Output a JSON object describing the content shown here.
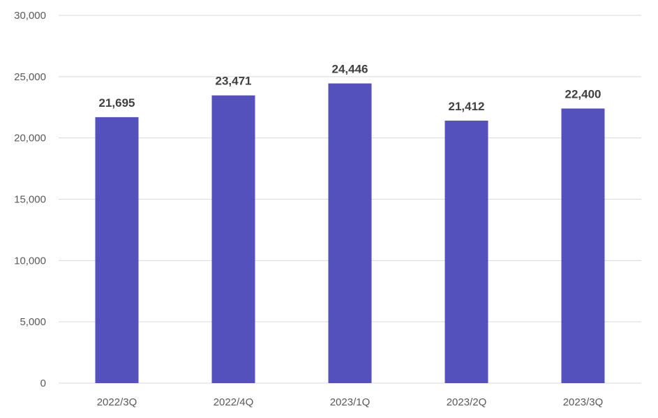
{
  "chart_data": {
    "type": "bar",
    "title": "",
    "xlabel": "",
    "ylabel": "",
    "categories": [
      "2022/3Q",
      "2022/4Q",
      "2023/1Q",
      "2023/2Q",
      "2023/3Q"
    ],
    "values": [
      21695,
      23471,
      24446,
      21412,
      22400
    ],
    "value_labels": [
      "21,695",
      "23,471",
      "24,446",
      "21,412",
      "22,400"
    ],
    "ylim": [
      0,
      30000
    ],
    "y_ticks": [
      0,
      5000,
      10000,
      15000,
      20000,
      25000,
      30000
    ],
    "y_tick_labels": [
      "0",
      "5,000",
      "10,000",
      "15,000",
      "20,000",
      "25,000",
      "30,000"
    ],
    "grid": true,
    "legend": "none",
    "colors": {
      "bar": "#5450BC",
      "grid": "#D9D9D9",
      "axis_text": "#595959",
      "data_label": "#404040"
    }
  }
}
